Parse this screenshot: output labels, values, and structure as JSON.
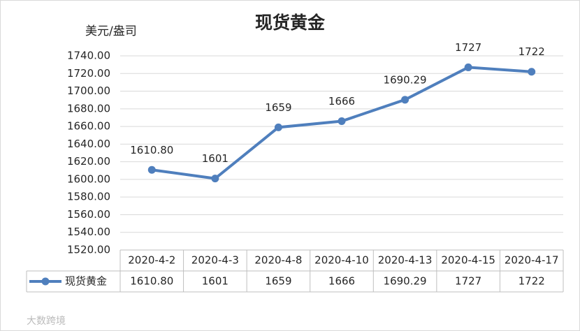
{
  "chart_data": {
    "type": "line",
    "title": "现货黄金",
    "y_label": "美元/盎司",
    "watermark": "大数跨境",
    "categories": [
      "2020-4-2",
      "2020-4-3",
      "2020-4-8",
      "2020-4-10",
      "2020-4-13",
      "2020-4-15",
      "2020-4-17"
    ],
    "series": [
      {
        "name": "现货黄金",
        "color": "#4f7fbd",
        "values": [
          1610.8,
          1601,
          1659,
          1666,
          1690.29,
          1727,
          1722
        ],
        "value_labels": [
          "1610.80",
          "1601",
          "1659",
          "1666",
          "1690.29",
          "1727",
          "1722"
        ]
      }
    ],
    "ylim": [
      1520,
      1740
    ],
    "yticks": [
      {
        "value": 1520,
        "label": "1520.00"
      },
      {
        "value": 1540,
        "label": "1540.00"
      },
      {
        "value": 1560,
        "label": "1560.00"
      },
      {
        "value": 1580,
        "label": "1580.00"
      },
      {
        "value": 1600,
        "label": "1600.00"
      },
      {
        "value": 1620,
        "label": "1620.00"
      },
      {
        "value": 1640,
        "label": "1640.00"
      },
      {
        "value": 1660,
        "label": "1660.00"
      },
      {
        "value": 1680,
        "label": "1680.00"
      },
      {
        "value": 1700,
        "label": "1700.00"
      },
      {
        "value": 1720,
        "label": "1720.00"
      },
      {
        "value": 1740,
        "label": "1740.00"
      }
    ],
    "grid": true,
    "data_table": true
  }
}
